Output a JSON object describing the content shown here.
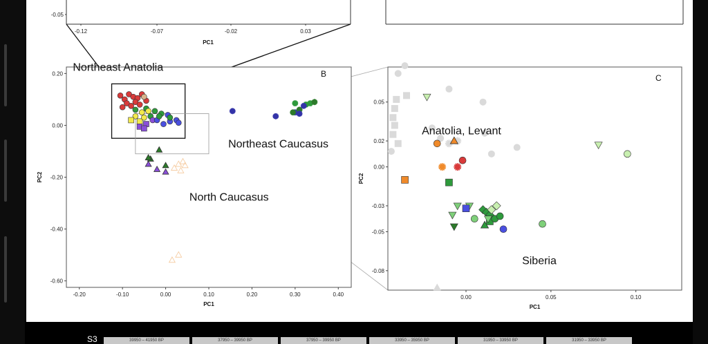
{
  "colors": {
    "red": "#d93a3a",
    "orange": "#f08a2a",
    "yellow": "#f2ea4c",
    "green": "#2e9a3c",
    "darkgreen": "#2c7a2a",
    "lightgreen": "#7fd07a",
    "palegreen": "#c8efb0",
    "purple": "#8a4fd8",
    "blue": "#4a4fe0",
    "navy": "#3333a8",
    "peach": "#f5c89a",
    "gray": "#dadada",
    "tan": "#d9b38c"
  },
  "panel_top": {
    "x_ticks": [
      "-0.12",
      "-0.07",
      "-0.02",
      "0.03"
    ],
    "y_ticks": [
      "-0.05"
    ],
    "xlabel": "PC1"
  },
  "chart_data": [
    {
      "type": "scatter",
      "panel": "B",
      "letter": "B",
      "xlabel": "PC1",
      "ylabel": "PC2",
      "xlim": [
        -0.23,
        0.43
      ],
      "ylim": [
        -0.625,
        0.225
      ],
      "x_ticks": [
        -0.2,
        -0.1,
        0.0,
        0.1,
        0.2,
        0.3,
        0.4
      ],
      "x_tick_labels": [
        "-0.20",
        "-0.10",
        "0.00",
        "0.10",
        "0.20",
        "0.30",
        "0.40"
      ],
      "y_ticks": [
        0.2,
        0.0,
        -0.2,
        -0.4,
        -0.6
      ],
      "y_tick_labels": [
        "0.20",
        "0.00",
        "-0.20",
        "-0.40",
        "-0.60"
      ],
      "grid": false,
      "annotations": [
        {
          "text": "Northeast Anatolia",
          "x": -0.215,
          "y": 0.21
        },
        {
          "text": "Northeast Caucasus",
          "x": 0.145,
          "y": -0.085
        },
        {
          "text": "North Caucasus",
          "x": 0.055,
          "y": -0.29
        }
      ],
      "zoom_boxes": [
        {
          "x0": -0.125,
          "x1": 0.045,
          "y0": -0.05,
          "y1": 0.16
        },
        {
          "x0": -0.07,
          "x1": 0.1,
          "y0": -0.11,
          "y1": 0.045
        }
      ],
      "points": [
        {
          "x": -0.105,
          "y": 0.115,
          "shape": "circle",
          "color": "red"
        },
        {
          "x": -0.095,
          "y": 0.1,
          "shape": "circle",
          "color": "red"
        },
        {
          "x": -0.085,
          "y": 0.12,
          "shape": "circle",
          "color": "red"
        },
        {
          "x": -0.075,
          "y": 0.11,
          "shape": "circle",
          "color": "red"
        },
        {
          "x": -0.065,
          "y": 0.105,
          "shape": "circle",
          "color": "red"
        },
        {
          "x": -0.055,
          "y": 0.12,
          "shape": "circle",
          "color": "red"
        },
        {
          "x": -0.09,
          "y": 0.085,
          "shape": "circle",
          "color": "red"
        },
        {
          "x": -0.07,
          "y": 0.09,
          "shape": "circle",
          "color": "red"
        },
        {
          "x": -0.045,
          "y": 0.095,
          "shape": "circle",
          "color": "red"
        },
        {
          "x": -0.08,
          "y": 0.075,
          "shape": "circle",
          "color": "red"
        },
        {
          "x": -0.06,
          "y": 0.08,
          "shape": "circle",
          "color": "red"
        },
        {
          "x": -0.1,
          "y": 0.07,
          "shape": "circle",
          "color": "red"
        },
        {
          "x": -0.05,
          "y": 0.11,
          "shape": "circle",
          "color": "tan"
        },
        {
          "x": -0.07,
          "y": 0.06,
          "shape": "circle",
          "color": "green"
        },
        {
          "x": -0.045,
          "y": 0.065,
          "shape": "circle",
          "color": "green"
        },
        {
          "x": -0.025,
          "y": 0.055,
          "shape": "circle",
          "color": "green"
        },
        {
          "x": -0.01,
          "y": 0.045,
          "shape": "circle",
          "color": "green"
        },
        {
          "x": -0.035,
          "y": 0.035,
          "shape": "circle",
          "color": "green"
        },
        {
          "x": -0.055,
          "y": 0.05,
          "shape": "circle",
          "color": "yellow"
        },
        {
          "x": -0.04,
          "y": 0.055,
          "shape": "circle",
          "color": "yellow"
        },
        {
          "x": -0.07,
          "y": 0.035,
          "shape": "circle",
          "color": "yellow"
        },
        {
          "x": -0.08,
          "y": 0.02,
          "shape": "square",
          "color": "yellow"
        },
        {
          "x": -0.06,
          "y": 0.015,
          "shape": "square",
          "color": "yellow"
        },
        {
          "x": -0.05,
          "y": 0.03,
          "shape": "circle",
          "color": "yellow"
        },
        {
          "x": -0.045,
          "y": 0.005,
          "shape": "square",
          "color": "purple"
        },
        {
          "x": -0.06,
          "y": -0.005,
          "shape": "square",
          "color": "purple"
        },
        {
          "x": -0.05,
          "y": -0.012,
          "shape": "square",
          "color": "purple"
        },
        {
          "x": -0.03,
          "y": 0.02,
          "shape": "circle",
          "color": "purple"
        },
        {
          "x": -0.02,
          "y": 0.02,
          "shape": "circle",
          "color": "blue"
        },
        {
          "x": 0.005,
          "y": 0.04,
          "shape": "circle",
          "color": "blue"
        },
        {
          "x": 0.01,
          "y": 0.015,
          "shape": "circle",
          "color": "blue"
        },
        {
          "x": 0.025,
          "y": 0.02,
          "shape": "circle",
          "color": "blue"
        },
        {
          "x": 0.03,
          "y": 0.01,
          "shape": "circle",
          "color": "blue"
        },
        {
          "x": -0.005,
          "y": 0.005,
          "shape": "circle",
          "color": "blue"
        },
        {
          "x": -0.015,
          "y": 0.035,
          "shape": "circle",
          "color": "green"
        },
        {
          "x": 0.01,
          "y": 0.03,
          "shape": "circle",
          "color": "green"
        },
        {
          "x": -0.015,
          "y": -0.095,
          "shape": "triangle",
          "color": "darkgreen"
        },
        {
          "x": -0.035,
          "y": -0.13,
          "shape": "triangle",
          "color": "darkgreen"
        },
        {
          "x": -0.04,
          "y": -0.125,
          "shape": "triangle",
          "color": "darkgreen"
        },
        {
          "x": 0.0,
          "y": -0.155,
          "shape": "triangle",
          "color": "darkgreen"
        },
        {
          "x": -0.04,
          "y": -0.15,
          "shape": "triangle",
          "color": "purple"
        },
        {
          "x": -0.02,
          "y": -0.17,
          "shape": "triangle",
          "color": "purple"
        },
        {
          "x": 0.0,
          "y": -0.18,
          "shape": "triangle",
          "color": "purple"
        },
        {
          "x": 0.03,
          "y": -0.15,
          "shape": "triangle",
          "color": "peach",
          "hollow": true
        },
        {
          "x": 0.04,
          "y": -0.14,
          "shape": "triangle",
          "color": "peach",
          "hollow": true
        },
        {
          "x": 0.045,
          "y": -0.155,
          "shape": "triangle",
          "color": "peach",
          "hollow": true
        },
        {
          "x": 0.035,
          "y": -0.175,
          "shape": "triangle",
          "color": "peach",
          "hollow": true
        },
        {
          "x": 0.02,
          "y": -0.165,
          "shape": "triangle",
          "color": "peach",
          "hollow": true
        },
        {
          "x": 0.03,
          "y": -0.5,
          "shape": "triangle",
          "color": "peach",
          "hollow": true
        },
        {
          "x": 0.015,
          "y": -0.52,
          "shape": "triangle",
          "color": "peach",
          "hollow": true
        },
        {
          "x": 0.155,
          "y": 0.055,
          "shape": "star",
          "color": "navy"
        },
        {
          "x": 0.255,
          "y": 0.035,
          "shape": "star",
          "color": "navy"
        },
        {
          "x": 0.3,
          "y": 0.05,
          "shape": "star",
          "color": "navy"
        },
        {
          "x": 0.295,
          "y": 0.05,
          "shape": "star",
          "color": "darkgreen"
        },
        {
          "x": 0.31,
          "y": 0.06,
          "shape": "star",
          "color": "darkgreen"
        },
        {
          "x": 0.325,
          "y": 0.08,
          "shape": "star",
          "color": "green"
        },
        {
          "x": 0.335,
          "y": 0.085,
          "shape": "star",
          "color": "green"
        },
        {
          "x": 0.345,
          "y": 0.09,
          "shape": "star",
          "color": "darkgreen"
        },
        {
          "x": 0.3,
          "y": 0.085,
          "shape": "star",
          "color": "green"
        },
        {
          "x": 0.32,
          "y": 0.075,
          "shape": "star",
          "color": "navy"
        },
        {
          "x": 0.31,
          "y": 0.045,
          "shape": "star",
          "color": "navy"
        }
      ]
    },
    {
      "type": "scatter",
      "panel": "C",
      "letter": "C",
      "xlabel": "PC1",
      "ylabel": "PC2",
      "xlim": [
        -0.046,
        0.127
      ],
      "ylim": [
        -0.095,
        0.077
      ],
      "x_ticks": [
        0.0,
        0.05,
        0.1
      ],
      "x_tick_labels": [
        "0.00",
        "0.05",
        "0.10"
      ],
      "y_ticks": [
        0.05,
        0.02,
        0.0,
        -0.03,
        -0.05,
        -0.08
      ],
      "y_tick_labels": [
        "0.05",
        "0.02",
        "0.00",
        "-0.03",
        "-0.05",
        "-0.08"
      ],
      "grid": false,
      "annotations": [
        {
          "text": "Anatolia, Levant",
          "x": -0.026,
          "y": 0.025
        },
        {
          "text": "Siberia",
          "x": 0.033,
          "y": -0.075
        }
      ],
      "points": [
        {
          "x": -0.041,
          "y": 0.052,
          "shape": "square",
          "color": "gray"
        },
        {
          "x": -0.042,
          "y": 0.045,
          "shape": "square",
          "color": "gray"
        },
        {
          "x": -0.043,
          "y": 0.038,
          "shape": "square",
          "color": "gray"
        },
        {
          "x": -0.042,
          "y": 0.032,
          "shape": "square",
          "color": "gray"
        },
        {
          "x": -0.043,
          "y": 0.025,
          "shape": "square",
          "color": "gray"
        },
        {
          "x": -0.04,
          "y": 0.018,
          "shape": "square",
          "color": "gray"
        },
        {
          "x": -0.035,
          "y": 0.055,
          "shape": "square",
          "color": "gray"
        },
        {
          "x": -0.04,
          "y": 0.072,
          "shape": "circle",
          "color": "gray"
        },
        {
          "x": -0.036,
          "y": 0.078,
          "shape": "circle",
          "color": "gray"
        },
        {
          "x": -0.044,
          "y": 0.012,
          "shape": "circle",
          "color": "gray"
        },
        {
          "x": -0.02,
          "y": 0.03,
          "shape": "circle",
          "color": "gray"
        },
        {
          "x": -0.015,
          "y": 0.022,
          "shape": "circle",
          "color": "gray"
        },
        {
          "x": -0.01,
          "y": 0.06,
          "shape": "circle",
          "color": "gray"
        },
        {
          "x": 0.01,
          "y": 0.05,
          "shape": "circle",
          "color": "gray"
        },
        {
          "x": 0.011,
          "y": 0.026,
          "shape": "circle",
          "color": "gray"
        },
        {
          "x": 0.015,
          "y": 0.01,
          "shape": "circle",
          "color": "gray"
        },
        {
          "x": 0.03,
          "y": 0.015,
          "shape": "circle",
          "color": "gray"
        },
        {
          "x": -0.005,
          "y": 0.02,
          "shape": "star",
          "color": "gray"
        },
        {
          "x": -0.01,
          "y": 0.018,
          "shape": "star",
          "color": "gray"
        },
        {
          "x": -0.017,
          "y": -0.093,
          "shape": "triangle",
          "color": "gray"
        },
        {
          "x": -0.023,
          "y": 0.054,
          "shape": "triangleDown",
          "color": "palegreen"
        },
        {
          "x": -0.017,
          "y": 0.018,
          "shape": "circle",
          "color": "orange"
        },
        {
          "x": -0.007,
          "y": 0.02,
          "shape": "triangle",
          "color": "orange"
        },
        {
          "x": -0.036,
          "y": -0.01,
          "shape": "square",
          "color": "orange"
        },
        {
          "x": -0.014,
          "y": 0.0,
          "shape": "star",
          "color": "orange"
        },
        {
          "x": -0.005,
          "y": 0.0,
          "shape": "star",
          "color": "red"
        },
        {
          "x": -0.002,
          "y": 0.005,
          "shape": "circle",
          "color": "red"
        },
        {
          "x": -0.01,
          "y": -0.012,
          "shape": "square",
          "color": "green"
        },
        {
          "x": -0.005,
          "y": -0.03,
          "shape": "triangleDown",
          "color": "lightgreen"
        },
        {
          "x": -0.008,
          "y": -0.037,
          "shape": "triangleDown",
          "color": "lightgreen"
        },
        {
          "x": 0.002,
          "y": -0.03,
          "shape": "triangleDown",
          "color": "lightgreen"
        },
        {
          "x": -0.007,
          "y": -0.046,
          "shape": "triangleDown",
          "color": "darkgreen"
        },
        {
          "x": 0.0,
          "y": -0.032,
          "shape": "square",
          "color": "blue"
        },
        {
          "x": 0.005,
          "y": -0.04,
          "shape": "circle",
          "color": "lightgreen"
        },
        {
          "x": 0.01,
          "y": -0.033,
          "shape": "diamond",
          "color": "green"
        },
        {
          "x": 0.012,
          "y": -0.035,
          "shape": "diamond",
          "color": "green"
        },
        {
          "x": 0.014,
          "y": -0.037,
          "shape": "diamond",
          "color": "green"
        },
        {
          "x": 0.015,
          "y": -0.033,
          "shape": "diamond",
          "color": "palegreen"
        },
        {
          "x": 0.018,
          "y": -0.03,
          "shape": "diamond",
          "color": "palegreen"
        },
        {
          "x": 0.011,
          "y": -0.045,
          "shape": "triangle",
          "color": "green"
        },
        {
          "x": 0.014,
          "y": -0.042,
          "shape": "square",
          "color": "green"
        },
        {
          "x": 0.017,
          "y": -0.04,
          "shape": "circle",
          "color": "green"
        },
        {
          "x": 0.02,
          "y": -0.038,
          "shape": "circle",
          "color": "green"
        },
        {
          "x": 0.013,
          "y": -0.04,
          "shape": "triangleDown",
          "color": "lightgreen"
        },
        {
          "x": 0.022,
          "y": -0.048,
          "shape": "circle",
          "color": "blue"
        },
        {
          "x": 0.045,
          "y": -0.044,
          "shape": "circle",
          "color": "lightgreen"
        },
        {
          "x": 0.078,
          "y": 0.017,
          "shape": "triangleDown",
          "color": "palegreen"
        },
        {
          "x": 0.095,
          "y": 0.01,
          "shape": "circle",
          "color": "palegreen"
        }
      ]
    }
  ],
  "table": {
    "label": "S3",
    "cells": [
      "39950 – 41950 BP",
      "37950 – 39950 BP",
      "37950 – 39950 BP",
      "33950 – 35950 BP",
      "31950 – 33950 BP",
      "31950 – 33950 BP"
    ]
  }
}
